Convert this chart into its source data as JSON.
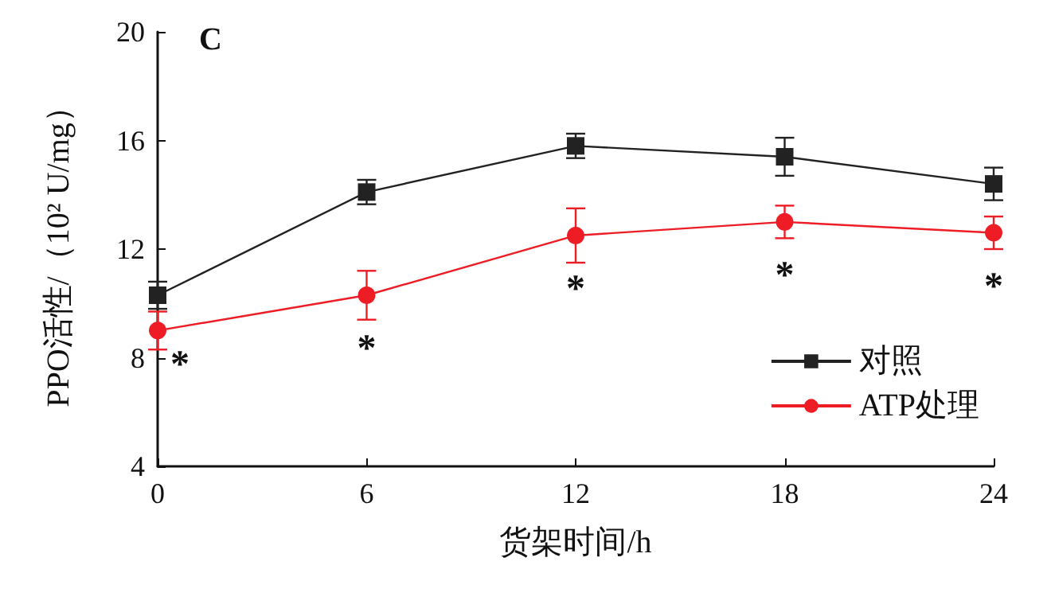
{
  "chart_data": {
    "type": "line",
    "title": "C",
    "xlabel": "货架时间/h",
    "ylabel": "PPO活性/（10² U/mg）",
    "x": [
      0,
      6,
      12,
      18,
      24
    ],
    "series": [
      {
        "name": "对照",
        "color": "#222222",
        "marker": "square",
        "values": [
          10.3,
          14.1,
          15.8,
          15.4,
          14.4
        ],
        "errors": [
          0.5,
          0.45,
          0.45,
          0.7,
          0.6
        ]
      },
      {
        "name": "ATP处理",
        "color": "#ee1c25",
        "marker": "circle",
        "values": [
          9.0,
          10.3,
          12.5,
          13.0,
          12.6
        ],
        "errors": [
          0.7,
          0.9,
          1.0,
          0.6,
          0.6
        ]
      }
    ],
    "annotations": [
      {
        "text": "*",
        "x": 0,
        "y": 9.0
      },
      {
        "text": "*",
        "x": 6,
        "y": 10.3
      },
      {
        "text": "*",
        "x": 12,
        "y": 12.5
      },
      {
        "text": "*",
        "x": 18,
        "y": 13.0
      },
      {
        "text": "*",
        "x": 24,
        "y": 12.6
      }
    ],
    "xlim": [
      0,
      24
    ],
    "xticks": [
      0,
      6,
      12,
      18,
      24
    ],
    "ylim": [
      4,
      20
    ],
    "yticks": [
      4,
      8,
      12,
      16,
      20
    ],
    "grid": false,
    "legend": "bottom right"
  }
}
